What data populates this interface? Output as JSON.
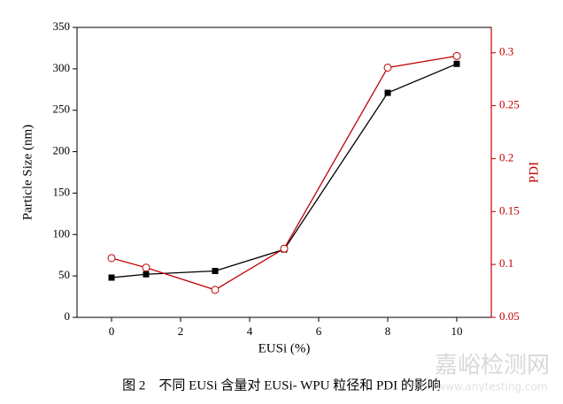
{
  "chart_data": {
    "type": "line",
    "xlabel": "EUSi (%)",
    "ylabel": "Particle Size (nm)",
    "y2label": "PDI",
    "x": [
      0,
      1,
      3,
      5,
      8,
      10
    ],
    "series": [
      {
        "color": "#000000",
        "marker": "square",
        "values": [
          48,
          52,
          56,
          82,
          271,
          306
        ]
      },
      {
        "color": "#c00000",
        "marker": "circle",
        "axis": "y2",
        "values": [
          0.106,
          0.097,
          0.076,
          0.115,
          0.286,
          0.297
        ]
      }
    ],
    "xlim": [
      -1,
      11
    ],
    "xticks": [
      0,
      2,
      4,
      6,
      8,
      10
    ],
    "ylim": [
      0,
      350
    ],
    "yticks": [
      0,
      50,
      100,
      150,
      200,
      250,
      300,
      350
    ],
    "y2lim": [
      0.05,
      0.324
    ],
    "y2ticks": [
      0.05,
      0.1,
      0.15,
      0.2,
      0.25,
      0.3
    ],
    "y2color": "#c00000",
    "caption": "图 2　不同 EUSi 含量对 EUSi- WPU 粒径和 PDI 的影响"
  },
  "watermark": {
    "title": "嘉峪检测网",
    "url": "www.anytesting.com"
  }
}
